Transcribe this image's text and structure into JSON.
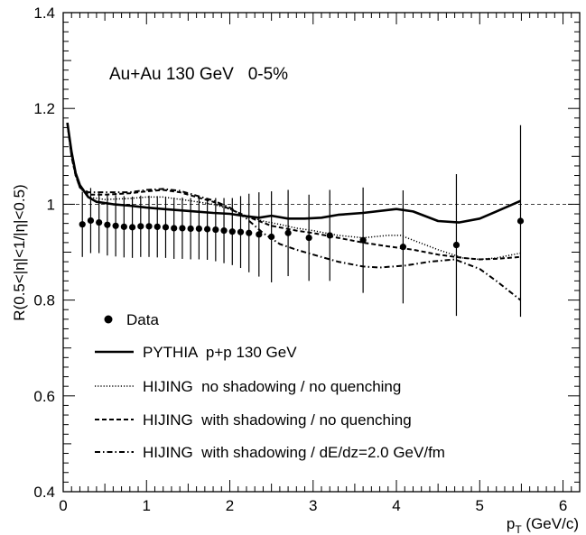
{
  "chart_data": {
    "type": "line",
    "title": "Au+Au 130 GeV   0-5%",
    "ylabel": "R(0.5<|η|<1/|η|<0.5)",
    "xlabel_main": "p",
    "xlabel_sub": "T",
    "xlabel_unit": " (GeV/c)",
    "xlim": [
      0,
      6.2
    ],
    "ylim": [
      0.4,
      1.4
    ],
    "x_ticks": [
      0,
      1,
      2,
      3,
      4,
      5,
      6
    ],
    "y_ticks": [
      0.4,
      0.6,
      0.8,
      1.0,
      1.2,
      1.4
    ],
    "x_tick_labels": [
      "0",
      "1",
      "2",
      "3",
      "4",
      "5",
      "6"
    ],
    "y_tick_labels": [
      "0.4",
      "0.6",
      "0.8",
      "1",
      "1.2",
      "1.4"
    ],
    "reference_line": 1.0,
    "grid": false,
    "legend_position": "bottom-left",
    "data_points": {
      "name": "Data",
      "x": [
        0.23,
        0.33,
        0.43,
        0.53,
        0.63,
        0.73,
        0.83,
        0.93,
        1.03,
        1.13,
        1.23,
        1.33,
        1.43,
        1.53,
        1.63,
        1.73,
        1.83,
        1.93,
        2.03,
        2.13,
        2.23,
        2.35,
        2.5,
        2.7,
        2.95,
        3.2,
        3.6,
        4.08,
        4.72,
        5.49
      ],
      "y": [
        0.958,
        0.966,
        0.962,
        0.957,
        0.955,
        0.953,
        0.952,
        0.954,
        0.954,
        0.953,
        0.952,
        0.95,
        0.95,
        0.949,
        0.949,
        0.948,
        0.947,
        0.945,
        0.943,
        0.942,
        0.94,
        0.937,
        0.932,
        0.94,
        0.93,
        0.935,
        0.925,
        0.911,
        0.915,
        0.965
      ],
      "err": [
        0.068,
        0.068,
        0.064,
        0.064,
        0.064,
        0.064,
        0.064,
        0.064,
        0.064,
        0.064,
        0.064,
        0.064,
        0.064,
        0.064,
        0.064,
        0.064,
        0.066,
        0.068,
        0.07,
        0.075,
        0.082,
        0.088,
        0.095,
        0.09,
        0.09,
        0.095,
        0.11,
        0.118,
        0.148,
        0.2
      ]
    },
    "series": [
      {
        "name": "PYTHIA  p+p 130 GeV",
        "style": "solid",
        "x": [
          0.05,
          0.1,
          0.15,
          0.2,
          0.3,
          0.4,
          0.6,
          0.8,
          1.0,
          1.2,
          1.5,
          1.8,
          2.0,
          2.2,
          2.35,
          2.5,
          2.7,
          2.9,
          3.1,
          3.3,
          3.6,
          4.0,
          4.2,
          4.5,
          4.75,
          5.0,
          5.2,
          5.49
        ],
        "y": [
          1.17,
          1.11,
          1.065,
          1.04,
          1.015,
          1.005,
          1.0,
          0.997,
          0.993,
          0.99,
          0.986,
          0.982,
          0.98,
          0.975,
          0.972,
          0.976,
          0.97,
          0.97,
          0.972,
          0.978,
          0.982,
          0.99,
          0.985,
          0.965,
          0.962,
          0.97,
          0.985,
          1.007
        ]
      },
      {
        "name": "HIJING  no shadowing / no quenching",
        "style": "dotted",
        "x": [
          0.05,
          0.1,
          0.15,
          0.2,
          0.3,
          0.5,
          0.8,
          1.0,
          1.2,
          1.5,
          1.8,
          2.0,
          2.2,
          2.4,
          2.6,
          2.8,
          3.0,
          3.3,
          3.6,
          3.9,
          4.05,
          4.2,
          4.5,
          4.8,
          5.0,
          5.2,
          5.49
        ],
        "y": [
          1.17,
          1.1,
          1.06,
          1.035,
          1.015,
          1.01,
          1.012,
          1.015,
          1.015,
          1.008,
          1.0,
          0.99,
          0.975,
          0.965,
          0.958,
          0.95,
          0.945,
          0.935,
          0.93,
          0.935,
          0.935,
          0.925,
          0.905,
          0.888,
          0.885,
          0.888,
          0.898
        ]
      },
      {
        "name": "HIJING  with shadowing / no quenching",
        "style": "dashed",
        "x": [
          0.05,
          0.1,
          0.15,
          0.2,
          0.3,
          0.5,
          0.8,
          1.0,
          1.2,
          1.4,
          1.6,
          1.8,
          2.0,
          2.2,
          2.5,
          2.8,
          3.0,
          3.3,
          3.6,
          3.9,
          4.2,
          4.5,
          4.8,
          5.0,
          5.2,
          5.49
        ],
        "y": [
          1.17,
          1.1,
          1.06,
          1.035,
          1.02,
          1.02,
          1.023,
          1.027,
          1.03,
          1.025,
          1.015,
          1.005,
          0.99,
          0.975,
          0.955,
          0.945,
          0.94,
          0.93,
          0.92,
          0.912,
          0.905,
          0.895,
          0.888,
          0.885,
          0.886,
          0.89
        ]
      },
      {
        "name": "HIJING  with shadowing / dE/dz=2.0 GeV/fm",
        "style": "dashdot",
        "x": [
          0.05,
          0.1,
          0.15,
          0.2,
          0.3,
          0.5,
          0.8,
          1.0,
          1.2,
          1.4,
          1.6,
          1.8,
          2.0,
          2.2,
          2.4,
          2.6,
          2.8,
          3.0,
          3.3,
          3.6,
          3.8,
          4.1,
          4.4,
          4.7,
          5.0,
          5.2,
          5.49
        ],
        "y": [
          1.17,
          1.1,
          1.06,
          1.035,
          1.025,
          1.025,
          1.025,
          1.03,
          1.032,
          1.028,
          1.018,
          1.008,
          0.993,
          0.97,
          0.94,
          0.917,
          0.905,
          0.895,
          0.88,
          0.87,
          0.868,
          0.872,
          0.88,
          0.885,
          0.865,
          0.84,
          0.8
        ]
      }
    ]
  }
}
